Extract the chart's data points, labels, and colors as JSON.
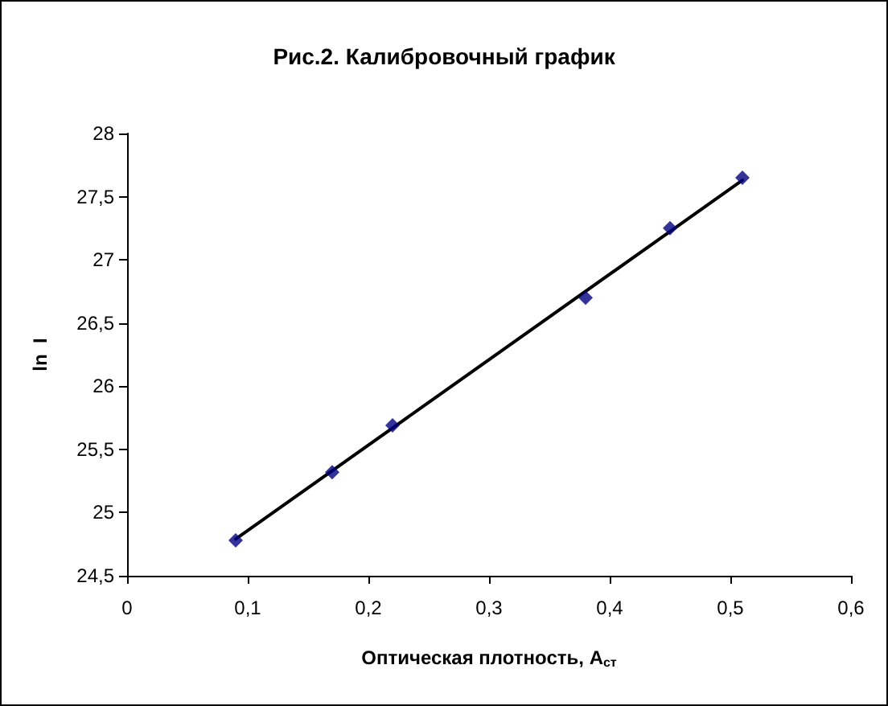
{
  "chart_data": {
    "type": "scatter",
    "title": "Рис.2. Калибровочный график",
    "xlabel": "Оптическая плотность, A$_{ст}$",
    "ylabel": "ln  I",
    "xlim": [
      0,
      0.6
    ],
    "xticks": [
      0,
      {
        "value": 0.1,
        "label": "0,1"
      },
      {
        "value": 0.2,
        "label": "0,2"
      },
      {
        "value": 0.3,
        "label": "0,3"
      },
      {
        "value": 0.4,
        "label": "0,4"
      },
      {
        "value": 0.5,
        "label": "0,5"
      },
      {
        "value": 0.6,
        "label": "0,6"
      }
    ],
    "ylim": [
      24.5,
      28
    ],
    "yticks": [
      {
        "value": 24.5,
        "label": "24,5"
      },
      25,
      {
        "value": 25.5,
        "label": "25,5"
      },
      26,
      {
        "value": 26.5,
        "label": "26,5"
      },
      27,
      {
        "value": 27.5,
        "label": "27,5"
      },
      28
    ],
    "grid": false,
    "marker": "diamond",
    "series": [
      {
        "color": "#000080",
        "x": [
          0.09,
          0.17,
          0.22,
          0.38,
          0.45,
          0.51
        ],
        "values": [
          24.78,
          25.32,
          25.69,
          26.7,
          27.25,
          27.65
        ]
      },
      {
        "type": "line",
        "color": "#000000",
        "marker": "none",
        "line_style": "solid",
        "x": [
          0.09,
          0.51
        ],
        "values": [
          24.79,
          27.63
        ]
      }
    ]
  }
}
